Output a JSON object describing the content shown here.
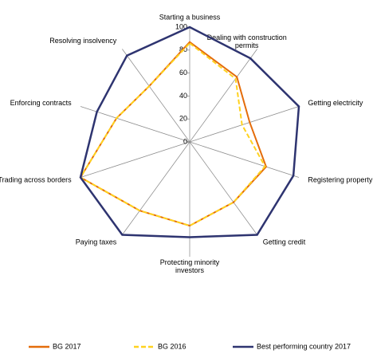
{
  "chart_data": {
    "type": "radar",
    "categories": [
      "Starting a business",
      "Dealing with construction permits",
      "Getting electricity",
      "Registering property",
      "Getting credit",
      "Protecting minority investors",
      "Paying taxes",
      "Trading across borders",
      "Enforcing contracts",
      "Resolving insolvency"
    ],
    "series": [
      {
        "name": "BG 2017",
        "color": "#e46c0a",
        "dashed": false,
        "values": [
          87,
          70,
          55,
          70,
          65,
          73,
          74,
          100,
          67,
          60
        ]
      },
      {
        "name": "BG 2016",
        "color": "#ffd21f",
        "dashed": true,
        "values": [
          86,
          68,
          48,
          69,
          65,
          73,
          74,
          100,
          67,
          60
        ]
      },
      {
        "name": "Best performing country 2017",
        "color": "#2e3470",
        "dashed": false,
        "values": [
          100,
          90,
          100,
          95,
          100,
          83,
          100,
          100,
          85,
          93
        ]
      }
    ],
    "ylim": [
      0,
      100
    ],
    "yticks": [
      0,
      20,
      40,
      60,
      80,
      100
    ],
    "grid": true,
    "legend": "bottom"
  }
}
